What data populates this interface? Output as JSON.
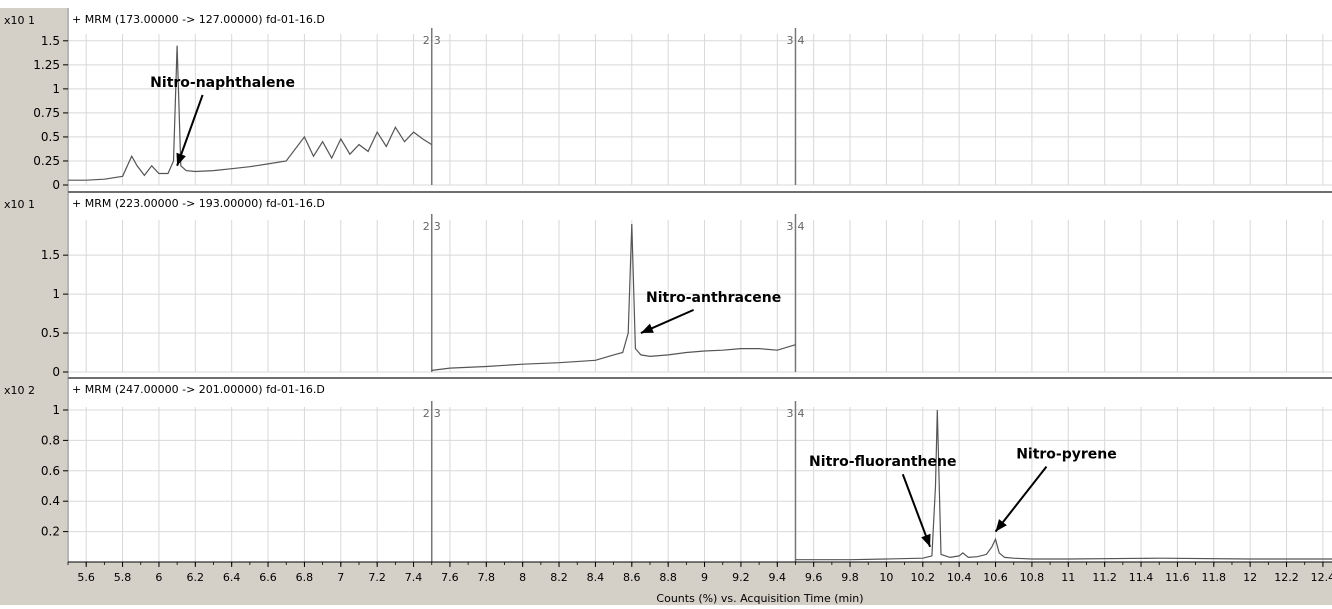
{
  "colors": {
    "trace": "#555555",
    "grid": "#d8d8d8",
    "frame": "#6e6e6e",
    "axis_bg": "#d4d0c8",
    "segment_line": "#777777",
    "text": "#000000"
  },
  "x_axis_label": "Counts (%) vs. Acquisition Time (min)",
  "chart_data": {
    "type": "line",
    "shared_x": {
      "xlim": [
        5.5,
        12.45
      ],
      "ticks": [
        5.6,
        5.8,
        6,
        6.2,
        6.4,
        6.6,
        6.8,
        7,
        7.2,
        7.4,
        7.6,
        7.8,
        8,
        8.2,
        8.4,
        8.6,
        8.8,
        9,
        9.2,
        9.4,
        9.6,
        9.8,
        10,
        10.2,
        10.4,
        10.6,
        10.8,
        11,
        11.2,
        11.4,
        11.6,
        11.8,
        12,
        12.2,
        12.4
      ],
      "tick_labels": [
        "5.6",
        "5.8",
        "6",
        "6.2",
        "6.4",
        "6.6",
        "6.8",
        "7",
        "7.2",
        "7.4",
        "7.6",
        "7.8",
        "8",
        "8.2",
        "8.4",
        "8.6",
        "8.8",
        "9",
        "9.2",
        "9.4",
        "9.6",
        "9.8",
        "10",
        "10.2",
        "10.4",
        "10.6",
        "10.8",
        "11",
        "11.2",
        "11.4",
        "11.6",
        "11.8",
        "12",
        "12.2",
        "12.4"
      ],
      "xlabel": "Counts (%) vs. Acquisition Time (min)"
    },
    "segment_boundaries": [
      {
        "x": 7.5,
        "label": "2|3"
      },
      {
        "x": 9.5,
        "label": "3|4"
      }
    ],
    "panels": [
      {
        "title": "+ MRM (173.00000 -> 127.00000) fd-01-16.D",
        "multiplier": "x10 1",
        "ylim": [
          0,
          1.55
        ],
        "yticks": [
          0,
          0.25,
          0.5,
          0.75,
          1,
          1.25,
          1.5
        ],
        "ytick_labels": [
          "0",
          "0.25",
          "0.5",
          "0.75",
          "1",
          "1.25",
          "1.5"
        ],
        "series": [
          {
            "x": [
              5.5,
              5.6,
              5.7,
              5.8,
              5.85,
              5.88,
              5.92,
              5.96,
              6.0,
              6.05,
              6.08,
              6.1,
              6.12,
              6.15,
              6.2,
              6.3,
              6.4,
              6.5,
              6.6,
              6.7,
              6.8,
              6.85,
              6.9,
              6.95,
              7.0,
              7.05,
              7.1,
              7.15,
              7.2,
              7.25,
              7.3,
              7.35,
              7.4,
              7.45,
              7.5
            ],
            "y": [
              0.05,
              0.05,
              0.06,
              0.09,
              0.3,
              0.2,
              0.1,
              0.2,
              0.12,
              0.12,
              0.25,
              1.45,
              0.2,
              0.15,
              0.14,
              0.15,
              0.17,
              0.19,
              0.22,
              0.25,
              0.5,
              0.3,
              0.45,
              0.28,
              0.48,
              0.32,
              0.42,
              0.35,
              0.55,
              0.4,
              0.6,
              0.45,
              0.55,
              0.48,
              0.42
            ]
          }
        ],
        "annotations": [
          {
            "text": "Nitro-naphthalene",
            "x": 6.1,
            "y": 0.2,
            "label_x": 6.35,
            "label_y": 1.02
          }
        ]
      },
      {
        "title": "+ MRM (223.00000 -> 193.00000) fd-01-16.D",
        "multiplier": "x10 1",
        "ylim": [
          0,
          1.9
        ],
        "yticks": [
          0,
          0.5,
          1,
          1.5
        ],
        "ytick_labels": [
          "0",
          "0.5",
          "1",
          "1.5"
        ],
        "series": [
          {
            "x": [
              7.5,
              7.6,
              7.8,
              8.0,
              8.2,
              8.4,
              8.5,
              8.55,
              8.58,
              8.6,
              8.62,
              8.65,
              8.7,
              8.8,
              8.9,
              9.0,
              9.1,
              9.2,
              9.3,
              9.4,
              9.5
            ],
            "y": [
              0.02,
              0.05,
              0.07,
              0.1,
              0.12,
              0.15,
              0.22,
              0.25,
              0.5,
              1.9,
              0.3,
              0.22,
              0.2,
              0.22,
              0.25,
              0.27,
              0.28,
              0.3,
              0.3,
              0.28,
              0.35
            ]
          }
        ],
        "annotations": [
          {
            "text": "Nitro-anthracene",
            "x": 8.65,
            "y": 0.5,
            "label_x": 9.05,
            "label_y": 0.9
          }
        ]
      },
      {
        "title": "+ MRM (247.00000 -> 201.00000) fd-01-16.D",
        "multiplier": "x10 2",
        "ylim": [
          0,
          1
        ],
        "yticks": [
          0.2,
          0.4,
          0.6,
          0.8,
          1
        ],
        "ytick_labels": [
          "0.2",
          "0.4",
          "0.6",
          "0.8",
          "1"
        ],
        "series": [
          {
            "x": [
              9.5,
              9.8,
              10.0,
              10.2,
              10.25,
              10.27,
              10.28,
              10.3,
              10.35,
              10.4,
              10.42,
              10.45,
              10.5,
              10.55,
              10.58,
              10.6,
              10.62,
              10.65,
              10.7,
              10.8,
              11.0,
              11.5,
              12.0,
              12.45
            ],
            "y": [
              0.015,
              0.015,
              0.02,
              0.025,
              0.04,
              0.5,
              1.0,
              0.05,
              0.03,
              0.04,
              0.06,
              0.03,
              0.035,
              0.05,
              0.1,
              0.15,
              0.06,
              0.03,
              0.025,
              0.02,
              0.02,
              0.025,
              0.02,
              0.02
            ]
          }
        ],
        "annotations": [
          {
            "text": "Nitro-fluoranthene",
            "x": 10.24,
            "y": 0.1,
            "label_x": 9.98,
            "label_y": 0.63
          },
          {
            "text": "Nitro-pyrene",
            "x": 10.6,
            "y": 0.2,
            "label_x": 10.99,
            "label_y": 0.68
          }
        ]
      }
    ]
  }
}
